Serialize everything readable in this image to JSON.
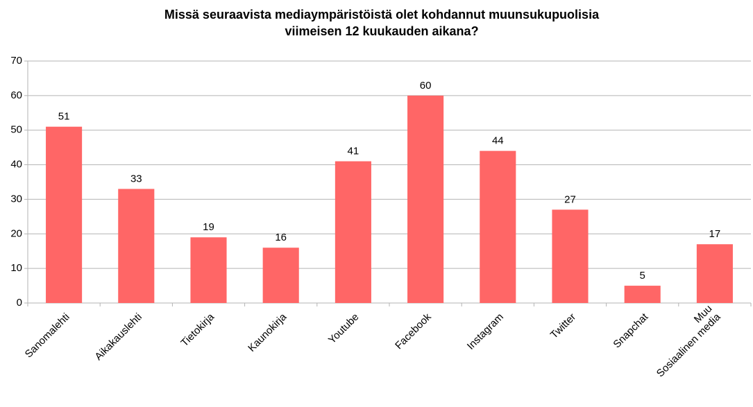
{
  "chart_data": {
    "type": "bar",
    "title": [
      "Missä seuraavista mediaympäristöistä olet kohdannut muunsukupuolisia",
      "viimeisen 12 kuukauden aikana?"
    ],
    "categories": [
      "Sanomalehti",
      "Aikakauslehti",
      "Tietokirja",
      "Kaunokirja",
      "Youtube",
      "Facebook",
      "Instagram",
      "Twitter",
      "Snapchat",
      "Muu\nSosiaalinen media"
    ],
    "values": [
      51,
      33,
      19,
      16,
      41,
      60,
      44,
      27,
      5,
      17
    ],
    "color": "#ff6666",
    "ylim": [
      0,
      70
    ],
    "yticks": [
      0,
      10,
      20,
      30,
      40,
      50,
      60,
      70
    ],
    "grid": true
  }
}
